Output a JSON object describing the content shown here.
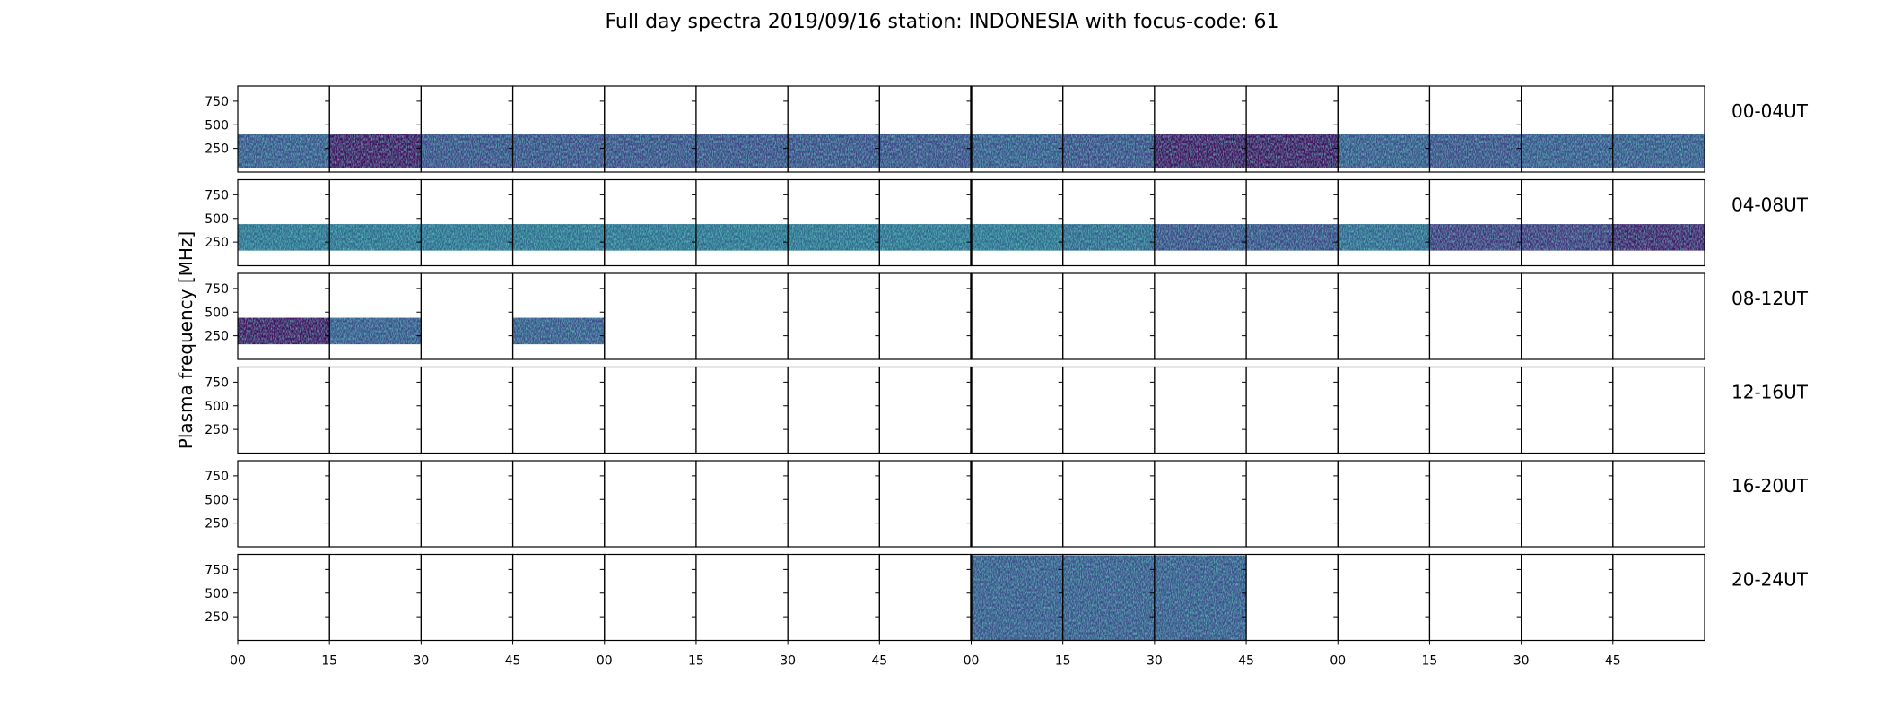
{
  "chart_data": {
    "type": "heatmap",
    "title": "Full day spectra 2019/09/16 station: INDONESIA with focus-code: 61",
    "ylabel": "Plasma frequency [MHz]",
    "ylim": [
      0,
      910
    ],
    "yticks": [
      250,
      500,
      750
    ],
    "xtick_labels": [
      "00",
      "15",
      "30",
      "45",
      "00",
      "15",
      "30",
      "45",
      "00",
      "15",
      "30",
      "45",
      "00",
      "15",
      "30",
      "45"
    ],
    "minutes_per_panel": 15,
    "panels_per_row": 16,
    "grid": false,
    "colormap": "viridis",
    "rows": [
      {
        "label": "00-04UT",
        "band": [
          45,
          400
        ],
        "intensity": [
          0.35,
          0.05,
          0.3,
          0.3,
          0.3,
          0.3,
          0.3,
          0.3,
          0.35,
          0.3,
          0.05,
          0.05,
          0.35,
          0.3,
          0.35,
          0.35
        ]
      },
      {
        "label": "04-08UT",
        "band": [
          160,
          440
        ],
        "intensity": [
          0.5,
          0.5,
          0.5,
          0.5,
          0.5,
          0.5,
          0.5,
          0.5,
          0.5,
          0.45,
          0.3,
          0.3,
          0.45,
          0.2,
          0.2,
          0.1
        ]
      },
      {
        "label": "08-12UT",
        "band": [
          160,
          440
        ],
        "intensity": [
          0.05,
          0.35,
          null,
          0.35,
          null,
          null,
          null,
          null,
          null,
          null,
          null,
          null,
          null,
          null,
          null,
          null
        ]
      },
      {
        "label": "12-16UT",
        "band": [
          0,
          0
        ],
        "intensity": [
          null,
          null,
          null,
          null,
          null,
          null,
          null,
          null,
          null,
          null,
          null,
          null,
          null,
          null,
          null,
          null
        ]
      },
      {
        "label": "16-20UT",
        "band": [
          0,
          0
        ],
        "intensity": [
          null,
          null,
          null,
          null,
          null,
          null,
          null,
          null,
          null,
          null,
          null,
          null,
          null,
          null,
          null,
          null
        ]
      },
      {
        "label": "20-24UT",
        "band": [
          0,
          900
        ],
        "intensity": [
          null,
          null,
          null,
          null,
          null,
          null,
          null,
          null,
          0.35,
          0.35,
          0.35,
          null,
          null,
          null,
          null,
          null
        ]
      }
    ]
  }
}
